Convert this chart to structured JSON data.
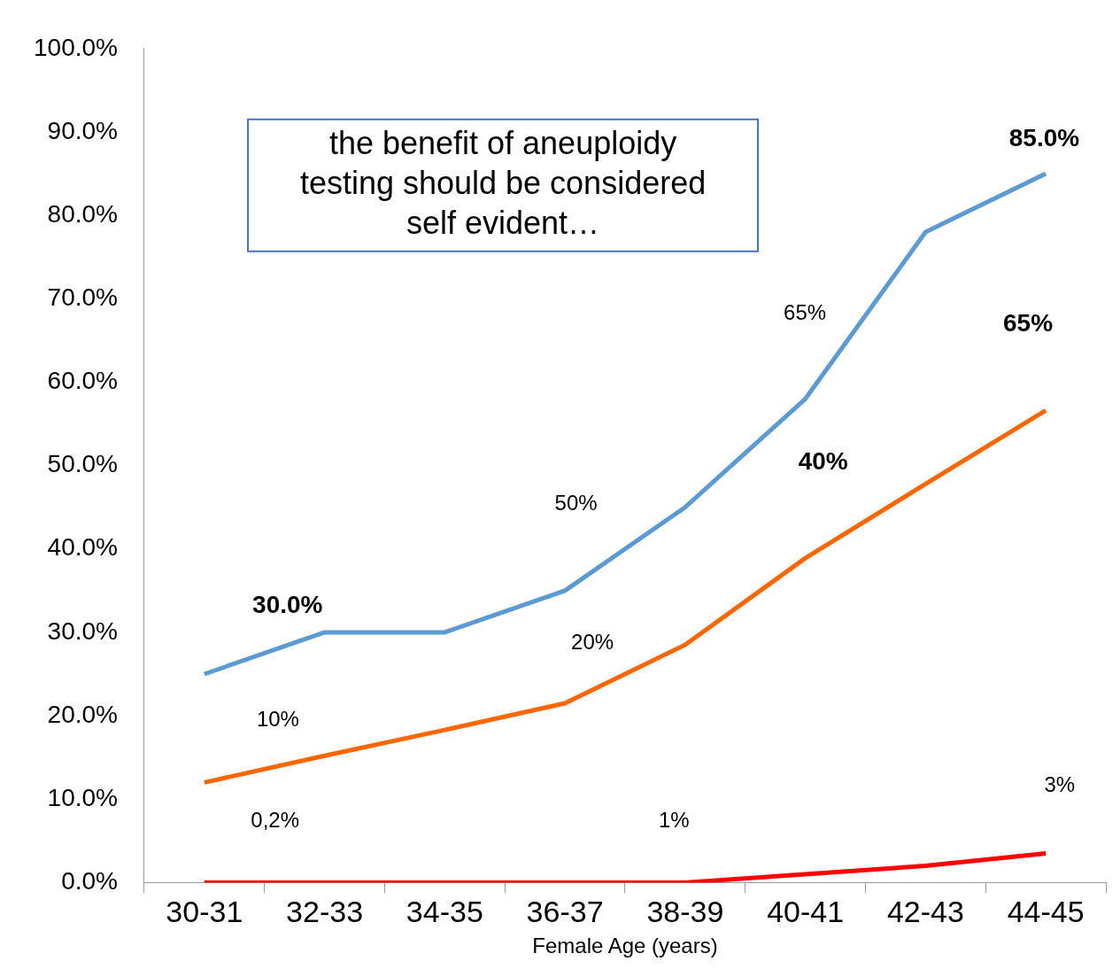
{
  "chart_data": {
    "type": "line",
    "xlabel": "Female Age (years)",
    "categories": [
      "30-31",
      "32-33",
      "34-35",
      "36-37",
      "38-39",
      "40-41",
      "42-43",
      "44-45"
    ],
    "series": [
      {
        "color": "#5b9bd5",
        "values": [
          25,
          30,
          30,
          35,
          45,
          58,
          78,
          85
        ]
      },
      {
        "color": "#ff6600",
        "values": [
          12,
          15.2,
          18.3,
          21.5,
          28.5,
          38.9,
          47.8,
          56.6
        ]
      },
      {
        "color": "#ff0000",
        "values": [
          0,
          0,
          0,
          0,
          0,
          1,
          2,
          3.5
        ]
      }
    ],
    "ylim": [
      0,
      100
    ],
    "yticks": [
      {
        "value": 0,
        "label": "0.0%"
      },
      {
        "value": 10,
        "label": "10.0%"
      },
      {
        "value": 20,
        "label": "20.0%"
      },
      {
        "value": 30,
        "label": "30.0%"
      },
      {
        "value": 40,
        "label": "40.0%"
      },
      {
        "value": 50,
        "label": "50.0%"
      },
      {
        "value": 60,
        "label": "60.0%"
      },
      {
        "value": 70,
        "label": "70.0%"
      },
      {
        "value": 80,
        "label": "80.0%"
      },
      {
        "value": 90,
        "label": "90.0%"
      },
      {
        "value": 100,
        "label": "100.0%"
      }
    ],
    "grid": false,
    "legend": false,
    "marker": "none",
    "line_style": "solid",
    "annotations": [
      "the benefit of aneuploidy testing should be considered self evident…",
      "30.0%",
      "85.0%",
      "65%",
      "50%",
      "20%",
      "40%",
      "65%",
      "10%",
      "0,2%",
      "1%",
      "3%"
    ]
  }
}
